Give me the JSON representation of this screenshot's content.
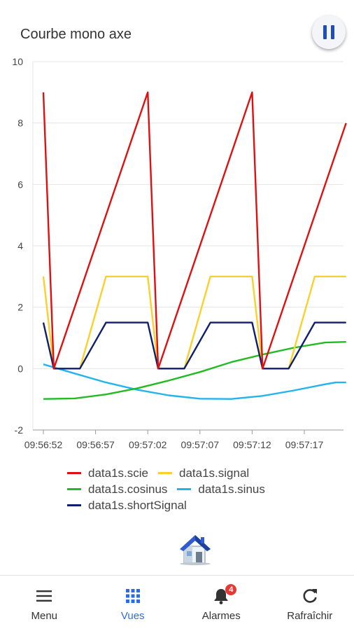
{
  "header": {
    "title": "Courbe mono axe"
  },
  "pause_icon": "pause-icon",
  "chart_data": {
    "type": "line",
    "title": "",
    "xlabel": "",
    "ylabel": "",
    "ylim": [
      -2,
      10
    ],
    "yticks": [
      "-2",
      "0",
      "2",
      "4",
      "6",
      "8",
      "10"
    ],
    "xticks": [
      "09:56:52",
      "09:56:57",
      "09:57:02",
      "09:57:07",
      "09:57:12",
      "09:57:17"
    ],
    "grid": true,
    "legend_position": "bottom",
    "series": [
      {
        "name": "data1s.scie",
        "color": "#e01010",
        "x": [
          "09:56:52",
          "09:56:53",
          "09:57:02",
          "09:57:03",
          "09:57:12",
          "09:57:13",
          "09:57:21"
        ],
        "y": [
          9,
          0,
          9,
          0,
          9,
          0,
          8
        ]
      },
      {
        "name": "data1s.signal",
        "color": "#fad02a",
        "x": [
          "09:56:52",
          "09:56:53",
          "09:56:55.5",
          "09:56:58",
          "09:57:02",
          "09:57:03",
          "09:57:05.5",
          "09:57:08",
          "09:57:12",
          "09:57:13",
          "09:57:15.5",
          "09:57:18",
          "09:57:21"
        ],
        "y": [
          3,
          0,
          0,
          3,
          3,
          0,
          0,
          3,
          3,
          0,
          0,
          3,
          3
        ]
      },
      {
        "name": "data1s.cosinus",
        "color": "#22bb22",
        "x": [
          "09:56:52",
          "09:56:55",
          "09:56:58",
          "09:57:01",
          "09:57:04",
          "09:57:07",
          "09:57:10",
          "09:57:13",
          "09:57:16",
          "09:57:19",
          "09:57:21"
        ],
        "y": [
          -0.99,
          -0.97,
          -0.84,
          -0.64,
          -0.39,
          -0.11,
          0.21,
          0.46,
          0.68,
          0.85,
          0.87
        ]
      },
      {
        "name": "data1s.sinus",
        "color": "#22b4ee",
        "x": [
          "09:56:52",
          "09:56:55",
          "09:56:58",
          "09:57:01",
          "09:57:04",
          "09:57:07",
          "09:57:10",
          "09:57:13",
          "09:57:16",
          "09:57:19",
          "09:57:20",
          "09:57:21"
        ],
        "y": [
          0.14,
          -0.16,
          -0.45,
          -0.69,
          -0.87,
          -0.98,
          -0.99,
          -0.89,
          -0.71,
          -0.51,
          -0.45,
          -0.45
        ]
      },
      {
        "name": "data1s.shortSignal",
        "color": "#0f1f6e",
        "x": [
          "09:56:52",
          "09:56:53",
          "09:56:55.5",
          "09:56:58",
          "09:57:02",
          "09:57:03",
          "09:57:05.5",
          "09:57:08",
          "09:57:12",
          "09:57:13",
          "09:57:15.5",
          "09:57:18",
          "09:57:21"
        ],
        "y": [
          1.5,
          0,
          0,
          1.5,
          1.5,
          0,
          0,
          1.5,
          1.5,
          0,
          0,
          1.5,
          1.5
        ]
      }
    ]
  },
  "home_icon": "house-icon",
  "nav": {
    "items": [
      {
        "label": "Menu",
        "icon": "hamburger-icon"
      },
      {
        "label": "Vues",
        "icon": "grid-icon",
        "active": true
      },
      {
        "label": "Alarmes",
        "icon": "bell-icon",
        "badge": "4"
      },
      {
        "label": "Rafraîchir",
        "icon": "refresh-icon"
      }
    ]
  }
}
